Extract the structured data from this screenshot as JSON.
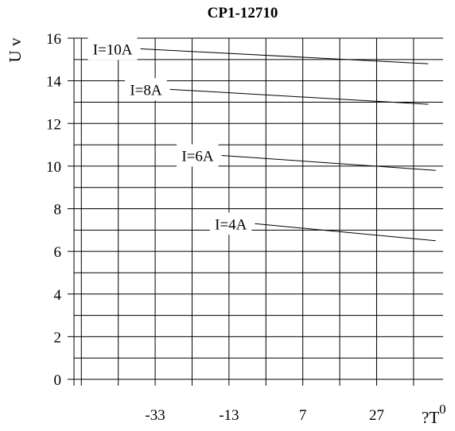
{
  "chart_data": {
    "type": "line",
    "title": "CP1-12710",
    "ylabel": "U v",
    "xlabel": "?T",
    "xlabel_superscript": "0",
    "ylim": [
      0,
      16
    ],
    "xlim": [
      -55,
      45
    ],
    "y_ticks": [
      "0",
      "2",
      "4",
      "6",
      "8",
      "10",
      "12",
      "14",
      "16"
    ],
    "x_ticks": [
      {
        "value": -33,
        "label": "-33"
      },
      {
        "value": -13,
        "label": "-13"
      },
      {
        "value": 7,
        "label": "7"
      },
      {
        "value": 27,
        "label": "27"
      }
    ],
    "grid": true,
    "series": [
      {
        "name": "I=10A",
        "x": [
          -37,
          41
        ],
        "y": [
          15.5,
          14.8
        ]
      },
      {
        "name": "I=8A",
        "x": [
          -29,
          41
        ],
        "y": [
          13.6,
          12.9
        ]
      },
      {
        "name": "I=6A",
        "x": [
          -15,
          43
        ],
        "y": [
          10.5,
          9.8
        ]
      },
      {
        "name": "I=4A",
        "x": [
          -6,
          43
        ],
        "y": [
          7.3,
          6.5
        ]
      }
    ]
  }
}
